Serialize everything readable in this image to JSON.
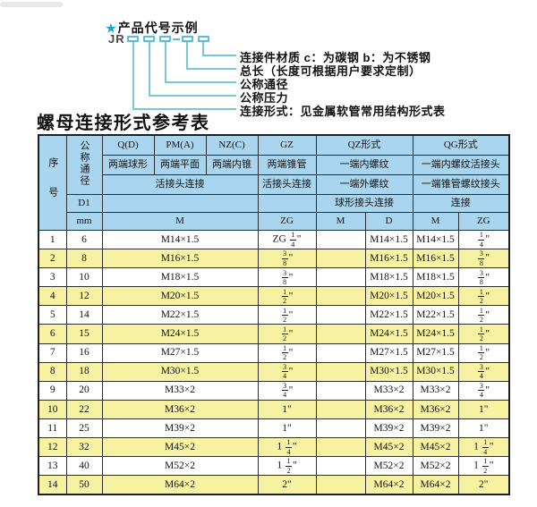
{
  "colors": {
    "header_bg": "#a9d5ee",
    "row_alt_bg": "#f7f2a2",
    "accent_cyan": "#58bed8",
    "star_blue": "#17a5da",
    "border": "#2d2d2d"
  },
  "diagram": {
    "star_icon": "★",
    "title": "产品代号示例",
    "code_prefix": "JR",
    "labels": [
      "连接件材质  c：为碳钢  b：为不锈钢",
      "总长（长度可根据用户要求定制）",
      "公称通径",
      "公称压力",
      "连接形式：见金属软管常用结构形式表"
    ]
  },
  "heading": "螺母连接形式参考表",
  "table": {
    "header": {
      "seq": "序号",
      "nominal": "公称通径",
      "d1": "D1",
      "mm": "mm",
      "q": "Q(D)",
      "q_sub": "两端球形",
      "pm": "PM(A)",
      "pm_sub": "两端平面",
      "nz": "NZ(C)",
      "nz_sub": "两端内锥",
      "union3": "活接头连接",
      "gz": "GZ",
      "gz_sub": "两端锥管",
      "gz_union": "活接头连接",
      "qz": "QZ形式",
      "qz_r2": "一端内螺纹",
      "qz_r3": "一端外螺纹",
      "qz_r4": "球形接头连接",
      "qg": "QG形式",
      "qg_r2": "一端内螺纹活接头",
      "qg_r3": "一端锥管螺纹接头",
      "qg_r4": "连接",
      "m": "M",
      "zg": "ZG",
      "qz_m": "M",
      "qz_d": "D",
      "qg_m": "M",
      "qg_zg": "ZG"
    },
    "rows": [
      {
        "seq": "1",
        "mm": "6",
        "m": "M14×1.5",
        "zg": "ZG 1/4\"",
        "qz_m": "",
        "qz_d": "M14×1.5",
        "qg_m": "M14×1.5",
        "qg_zg": "1/4\""
      },
      {
        "seq": "2",
        "mm": "8",
        "m": "M16×1.5",
        "zg": "3/8\"",
        "qz_m": "",
        "qz_d": "M16×1.5",
        "qg_m": "M16×1.5",
        "qg_zg": "3/8\""
      },
      {
        "seq": "3",
        "mm": "10",
        "m": "M18×1.5",
        "zg": "3/8\"",
        "qz_m": "",
        "qz_d": "M18×1.5",
        "qg_m": "M18×1.5",
        "qg_zg": "3/8\""
      },
      {
        "seq": "4",
        "mm": "12",
        "m": "M20×1.5",
        "zg": "1/2\"",
        "qz_m": "",
        "qz_d": "M20×1.5",
        "qg_m": "M20×1.5",
        "qg_zg": "1/2\""
      },
      {
        "seq": "5",
        "mm": "14",
        "m": "M22×1.5",
        "zg": "1/2\"",
        "qz_m": "",
        "qz_d": "M22×1.5",
        "qg_m": "M22×1.5",
        "qg_zg": "1/2\""
      },
      {
        "seq": "6",
        "mm": "15",
        "m": "M24×1.5",
        "zg": "1/2\"",
        "qz_m": "",
        "qz_d": "M24×1.5",
        "qg_m": "M24×1.5",
        "qg_zg": "1/2\""
      },
      {
        "seq": "7",
        "mm": "16",
        "m": "M27×1.5",
        "zg": "1/2\"",
        "qz_m": "",
        "qz_d": "M27×1.5",
        "qg_m": "M27×1.5",
        "qg_zg": "1/2\""
      },
      {
        "seq": "8",
        "mm": "18",
        "m": "M30×1.5",
        "zg": "3/4\"",
        "qz_m": "",
        "qz_d": "M30×1.5",
        "qg_m": "M30×1.5",
        "qg_zg": "3/4\""
      },
      {
        "seq": "9",
        "mm": "20",
        "m": "M33×2",
        "zg": "3/4\"",
        "qz_m": "",
        "qz_d": "M33×2",
        "qg_m": "M33×2",
        "qg_zg": "3/4\""
      },
      {
        "seq": "10",
        "mm": "22",
        "m": "M36×2",
        "zg": "1\"",
        "qz_m": "",
        "qz_d": "M36×2",
        "qg_m": "M36×2",
        "qg_zg": "1\""
      },
      {
        "seq": "11",
        "mm": "25",
        "m": "M39×2",
        "zg": "1\"",
        "qz_m": "",
        "qz_d": "M39×2",
        "qg_m": "M39×2",
        "qg_zg": "1\""
      },
      {
        "seq": "12",
        "mm": "32",
        "m": "M45×2",
        "zg": "1 1/4\"",
        "qz_m": "",
        "qz_d": "M45×2",
        "qg_m": "M45×2",
        "qg_zg": "1 1/4\""
      },
      {
        "seq": "13",
        "mm": "40",
        "m": "M52×2",
        "zg": "1 1/2\"",
        "qz_m": "",
        "qz_d": "M52×2",
        "qg_m": "M52×2",
        "qg_zg": "1 1/2\""
      },
      {
        "seq": "14",
        "mm": "50",
        "m": "M64×2",
        "zg": "2\"",
        "qz_m": "",
        "qz_d": "M64×2",
        "qg_m": "M64×2",
        "qg_zg": "2\""
      }
    ]
  }
}
